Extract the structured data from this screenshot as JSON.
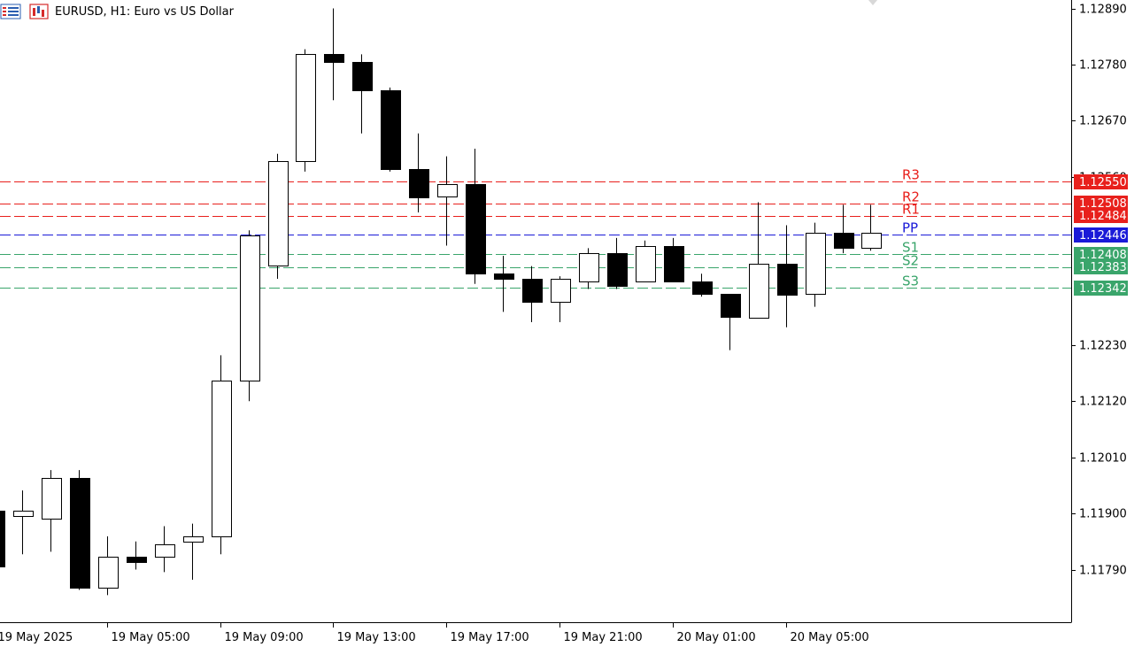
{
  "header": {
    "title": "EURUSD, H1:  Euro vs US Dollar"
  },
  "colors": {
    "background": "#ffffff",
    "axis": "#000000",
    "bull_body": "#ffffff",
    "bear_body": "#000000",
    "candle_outline": "#000000",
    "resistance": "#e8201c",
    "pivot": "#1a1ad8",
    "support": "#3aa56b"
  },
  "chart_data": {
    "type": "candlestick",
    "symbol": "EURUSD",
    "timeframe": "H1",
    "ylim": [
      1.117,
      1.129
    ],
    "y_ticks": [
      "1.12890",
      "1.12780",
      "1.12670",
      "1.12560",
      "1.12230",
      "1.12120",
      "1.12010",
      "1.11900",
      "1.11790"
    ],
    "x_tick_labels": [
      "19 May 2025",
      "19 May 05:00",
      "19 May 09:00",
      "19 May 13:00",
      "19 May 17:00",
      "19 May 21:00",
      "20 May 01:00",
      "20 May 05:00"
    ],
    "candles": [
      {
        "open": 1.11905,
        "high": 1.11905,
        "low": 1.11805,
        "close": 1.11795
      },
      {
        "open": 1.11895,
        "high": 1.11945,
        "low": 1.1182,
        "close": 1.11905
      },
      {
        "open": 1.1189,
        "high": 1.11985,
        "low": 1.11825,
        "close": 1.1197
      },
      {
        "open": 1.1197,
        "high": 1.11985,
        "low": 1.1175,
        "close": 1.11755
      },
      {
        "open": 1.11755,
        "high": 1.11855,
        "low": 1.1174,
        "close": 1.11815
      },
      {
        "open": 1.11815,
        "high": 1.11845,
        "low": 1.1179,
        "close": 1.11805
      },
      {
        "open": 1.11815,
        "high": 1.11875,
        "low": 1.11785,
        "close": 1.1184
      },
      {
        "open": 1.11845,
        "high": 1.1188,
        "low": 1.1177,
        "close": 1.11855
      },
      {
        "open": 1.11855,
        "high": 1.1221,
        "low": 1.1182,
        "close": 1.1216
      },
      {
        "open": 1.1216,
        "high": 1.12455,
        "low": 1.1212,
        "close": 1.12445
      },
      {
        "open": 1.12385,
        "high": 1.12605,
        "low": 1.1236,
        "close": 1.1259
      },
      {
        "open": 1.1259,
        "high": 1.1281,
        "low": 1.1257,
        "close": 1.128
      },
      {
        "open": 1.128,
        "high": 1.1289,
        "low": 1.1271,
        "close": 1.12785
      },
      {
        "open": 1.12785,
        "high": 1.128,
        "low": 1.12645,
        "close": 1.1273
      },
      {
        "open": 1.1273,
        "high": 1.12735,
        "low": 1.1257,
        "close": 1.12575
      },
      {
        "open": 1.12575,
        "high": 1.12645,
        "low": 1.1249,
        "close": 1.1252
      },
      {
        "open": 1.1252,
        "high": 1.126,
        "low": 1.12425,
        "close": 1.12545
      },
      {
        "open": 1.12545,
        "high": 1.12615,
        "low": 1.1235,
        "close": 1.1237
      },
      {
        "open": 1.1237,
        "high": 1.12405,
        "low": 1.12295,
        "close": 1.1236
      },
      {
        "open": 1.1236,
        "high": 1.12385,
        "low": 1.12275,
        "close": 1.12315
      },
      {
        "open": 1.12315,
        "high": 1.12365,
        "low": 1.12275,
        "close": 1.1236
      },
      {
        "open": 1.12355,
        "high": 1.1242,
        "low": 1.1234,
        "close": 1.1241
      },
      {
        "open": 1.1241,
        "high": 1.1244,
        "low": 1.1234,
        "close": 1.12345
      },
      {
        "open": 1.12355,
        "high": 1.12435,
        "low": 1.12355,
        "close": 1.12425
      },
      {
        "open": 1.12425,
        "high": 1.1244,
        "low": 1.12355,
        "close": 1.12355
      },
      {
        "open": 1.12355,
        "high": 1.1237,
        "low": 1.12325,
        "close": 1.1233
      },
      {
        "open": 1.1233,
        "high": 1.1233,
        "low": 1.1222,
        "close": 1.12285
      },
      {
        "open": 1.12285,
        "high": 1.1251,
        "low": 1.12285,
        "close": 1.1239
      },
      {
        "open": 1.1239,
        "high": 1.12465,
        "low": 1.12265,
        "close": 1.1233
      },
      {
        "open": 1.1233,
        "high": 1.1247,
        "low": 1.12305,
        "close": 1.1245
      },
      {
        "open": 1.1245,
        "high": 1.12505,
        "low": 1.1241,
        "close": 1.1242
      },
      {
        "open": 1.1242,
        "high": 1.12505,
        "low": 1.12415,
        "close": 1.1245
      }
    ],
    "pivot_levels": [
      {
        "name": "R3",
        "value": 1.1255,
        "label": "1.12550",
        "kind": "resistance"
      },
      {
        "name": "R2",
        "value": 1.12508,
        "label": "1.12508",
        "kind": "resistance"
      },
      {
        "name": "R1",
        "value": 1.12484,
        "label": "1.12484",
        "kind": "resistance"
      },
      {
        "name": "PP",
        "value": 1.12446,
        "label": "1.12446",
        "kind": "pivot"
      },
      {
        "name": "S1",
        "value": 1.12408,
        "label": "1.12408",
        "kind": "support"
      },
      {
        "name": "S2",
        "value": 1.12383,
        "label": "1.12383",
        "kind": "support"
      },
      {
        "name": "S3",
        "value": 1.12342,
        "label": "1.12342",
        "kind": "support"
      }
    ]
  }
}
